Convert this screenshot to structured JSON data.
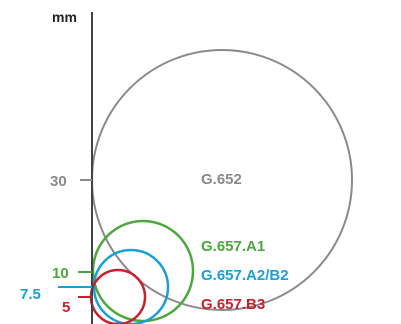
{
  "diagram": {
    "unit_label": "mm",
    "axis_values": {
      "r30": "30",
      "r10": "10",
      "r7_5": "7.5",
      "r5": "5"
    },
    "fibers": [
      {
        "name": "G.652",
        "radius_mm": 30,
        "color": "#8a8a8a"
      },
      {
        "name": "G.657.A1",
        "radius_mm": 10,
        "color": "#4aa83c"
      },
      {
        "name": "G.657.A2/B2",
        "radius_mm": 7.5,
        "color": "#1a9fd9"
      },
      {
        "name": "G.657.B3",
        "radius_mm": 5,
        "color": "#c8202c"
      }
    ],
    "axis_color": "#444444"
  }
}
